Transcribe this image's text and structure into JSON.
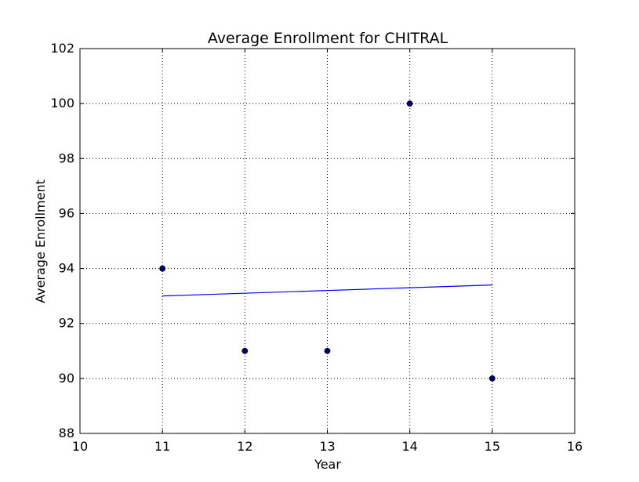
{
  "chart_data": {
    "type": "scatter",
    "title": "Average Enrollment for CHITRAL",
    "xlabel": "Year",
    "ylabel": "Average Enrollment",
    "xlim": [
      10,
      16
    ],
    "ylim": [
      88,
      102
    ],
    "xticks": [
      "10",
      "11",
      "12",
      "13",
      "14",
      "15",
      "16"
    ],
    "yticks": [
      "88",
      "90",
      "92",
      "94",
      "96",
      "98",
      "100",
      "102"
    ],
    "grid": true,
    "points": {
      "x": [
        11,
        12,
        13,
        14,
        15
      ],
      "y": [
        94,
        91,
        91,
        100,
        90
      ],
      "color": "#00007f"
    },
    "trend_line": {
      "x": [
        11,
        15
      ],
      "y": [
        93.0,
        93.4
      ],
      "color": "#0000ff"
    }
  }
}
